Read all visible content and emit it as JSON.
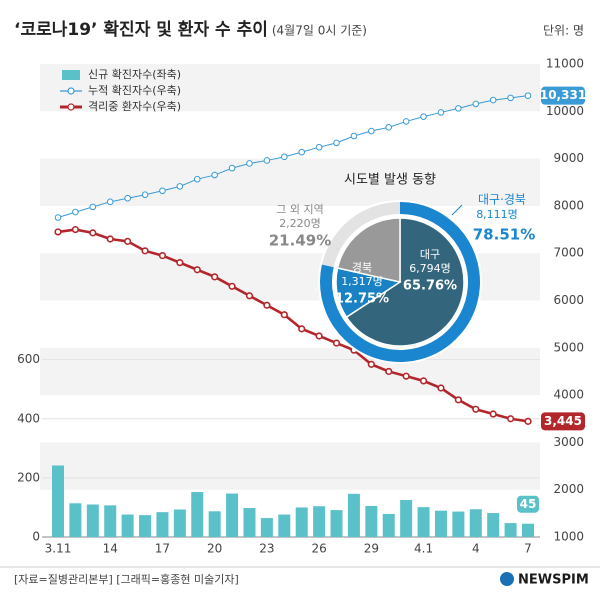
{
  "chart_data": [
    {
      "type": "combo",
      "title": "‘코로나19’ 확진자 및 환자 수 추이",
      "subtitle": "(4월7일 0시 기준)",
      "unit": "단위: 명",
      "categories": [
        "3.11",
        null,
        null,
        "14",
        null,
        null,
        "17",
        null,
        null,
        "20",
        null,
        null,
        "23",
        null,
        null,
        "26",
        null,
        null,
        "29",
        null,
        null,
        "4.1",
        null,
        null,
        "4",
        null,
        null,
        "7"
      ],
      "ylim": [
        0,
        1600
      ],
      "yticks": [
        0,
        200,
        400,
        600
      ],
      "y2lim": [
        1000,
        11000
      ],
      "y2ticks": [
        1000,
        2000,
        3000,
        4000,
        5000,
        6000,
        7000,
        8000,
        9000,
        10000,
        11000
      ],
      "grid": true,
      "series": [
        {
          "name": "신규 확진자수(좌축)",
          "kind": "bar",
          "color": "#5bc1c9",
          "values": [
            242,
            114,
            110,
            107,
            76,
            74,
            84,
            93,
            152,
            87,
            147,
            98,
            64,
            76,
            100,
            104,
            91,
            146,
            105,
            78,
            125,
            101,
            89,
            86,
            94,
            81,
            47,
            45
          ],
          "value_labels": [
            null,
            null,
            null,
            null,
            null,
            null,
            null,
            null,
            null,
            null,
            null,
            null,
            null,
            null,
            null,
            null,
            null,
            null,
            null,
            null,
            null,
            null,
            null,
            null,
            null,
            null,
            null,
            "45"
          ]
        },
        {
          "name": "누적 확진자수(우축)",
          "kind": "line",
          "axis": "y2",
          "color": "#3a9bd6",
          "values": [
            7755,
            7869,
            7979,
            8086,
            8162,
            8236,
            8320,
            8413,
            8565,
            8652,
            8799,
            8897,
            8961,
            9037,
            9137,
            9241,
            9332,
            9478,
            9583,
            9661,
            9786,
            9887,
            9976,
            10062,
            10156,
            10237,
            10284,
            10331
          ],
          "value_labels": [
            null,
            null,
            null,
            null,
            null,
            null,
            null,
            null,
            null,
            null,
            null,
            null,
            null,
            null,
            null,
            null,
            null,
            null,
            null,
            null,
            null,
            null,
            null,
            null,
            null,
            null,
            null,
            "10,331"
          ]
        },
        {
          "name": "격리중 환자수(우축)",
          "kind": "line",
          "axis": "y2",
          "color": "#b3262b",
          "values": [
            7450,
            7500,
            7430,
            7300,
            7250,
            7050,
            6950,
            6800,
            6650,
            6500,
            6300,
            6100,
            5900,
            5700,
            5400,
            5250,
            5100,
            4950,
            4650,
            4500,
            4400,
            4300,
            4150,
            3900,
            3700,
            3600,
            3500,
            3445
          ],
          "value_labels": [
            null,
            null,
            null,
            null,
            null,
            null,
            null,
            null,
            null,
            null,
            null,
            null,
            null,
            null,
            null,
            null,
            null,
            null,
            null,
            null,
            null,
            null,
            null,
            null,
            null,
            null,
            null,
            "3,445"
          ]
        }
      ],
      "source": "[자료=질병관리본부] [그래픽=홍종현 미술기자]",
      "brand": "NEWSPIM"
    },
    {
      "type": "pie",
      "title": "시도별 발생 동향",
      "categories": [
        "대구",
        "경북",
        "그 외 지역"
      ],
      "values": [
        65.76,
        12.75,
        21.49
      ],
      "value_labels": [
        "65.76%",
        "12.75%",
        "21.49%"
      ],
      "counts": [
        6794,
        1317,
        2220
      ],
      "count_labels": [
        "6,794명",
        "1,317명",
        "2,220명"
      ],
      "colors": [
        "#33667c",
        "#1a82c4",
        "#999999"
      ],
      "group": {
        "name": "대구·경북",
        "value": 78.51,
        "value_label": "78.51%",
        "count": 8111,
        "count_label": "8,111명",
        "color": "#1a86cf"
      }
    }
  ]
}
